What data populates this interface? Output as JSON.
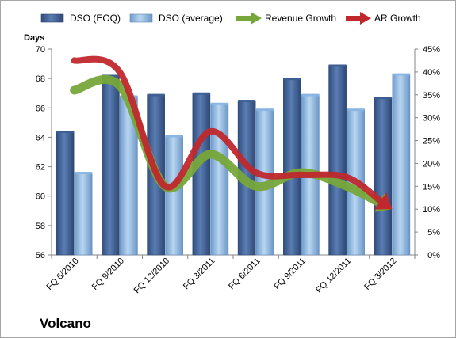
{
  "chart_data": {
    "type": "bar",
    "title": "",
    "company_label": "Volcano",
    "categories": [
      "FQ 6/2010",
      "FQ 9/2010",
      "FQ 12/2010",
      "FQ 3/2011",
      "FQ 6/2011",
      "FQ 9/2011",
      "FQ 12/2011",
      "FQ 3/2012"
    ],
    "y_left": {
      "label": "Days",
      "ylim": [
        56,
        70
      ],
      "ticks": [
        56,
        58,
        60,
        62,
        64,
        66,
        68,
        70
      ]
    },
    "y_right": {
      "ylim": [
        0,
        45
      ],
      "ticks": [
        "0%",
        "5%",
        "10%",
        "15%",
        "20%",
        "25%",
        "30%",
        "35%",
        "40%",
        "45%"
      ]
    },
    "series": [
      {
        "name": "DSO (EOQ)",
        "axis": "left",
        "kind": "bar",
        "color": "#4f6fa0",
        "values": [
          64.4,
          68.2,
          66.9,
          67.0,
          66.5,
          68.0,
          68.9,
          66.7
        ]
      },
      {
        "name": "DSO (average)",
        "axis": "left",
        "kind": "bar",
        "color": "#9ec3e6",
        "values": [
          61.6,
          66.8,
          64.1,
          66.3,
          65.9,
          66.9,
          65.9,
          68.3
        ]
      },
      {
        "name": "Revenue Growth",
        "axis": "right",
        "kind": "arrow-line",
        "color": "#77a73a",
        "values": [
          36,
          37,
          15,
          22,
          15,
          18,
          15,
          10
        ]
      },
      {
        "name": "AR Growth",
        "axis": "right",
        "kind": "arrow-line",
        "color": "#c0282d",
        "values": [
          42.5,
          40,
          15,
          27,
          18,
          17.5,
          17,
          10
        ]
      }
    ],
    "grid": false,
    "legend": "top"
  }
}
